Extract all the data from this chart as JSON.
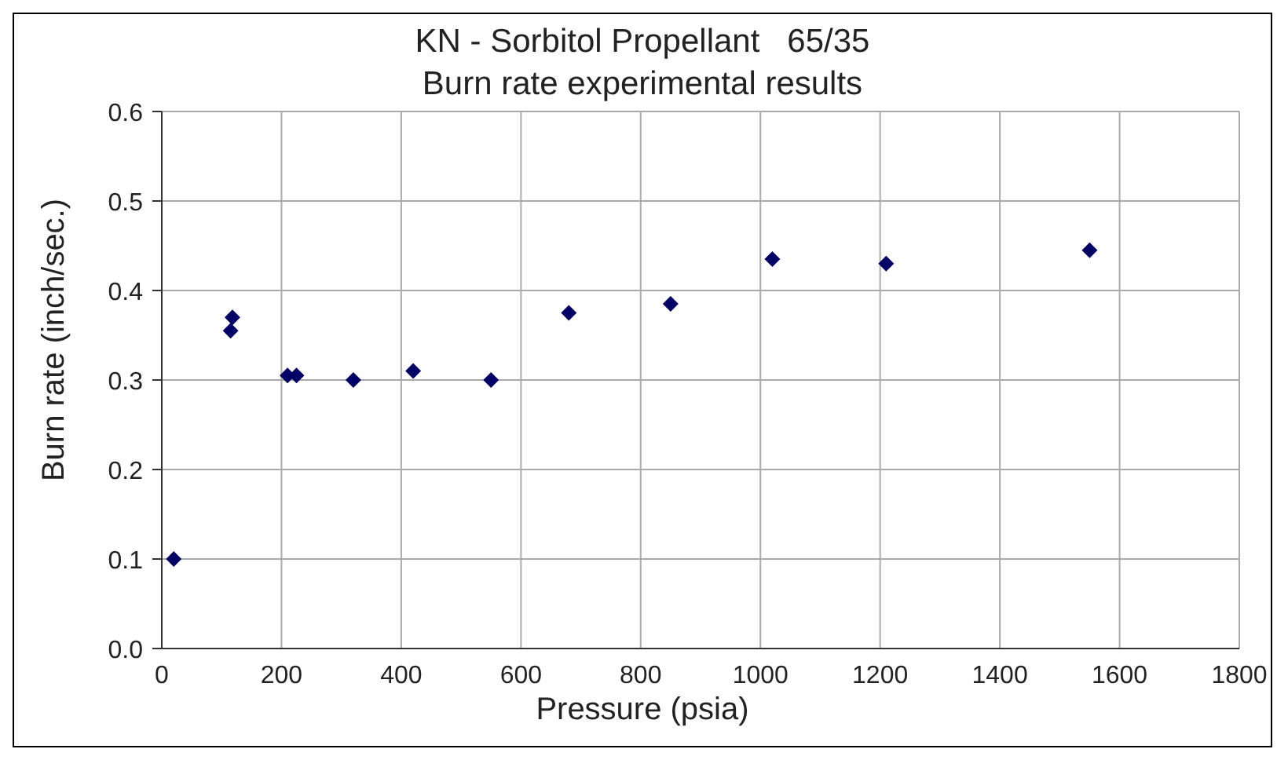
{
  "chart_data": {
    "type": "scatter",
    "title": "KN - Sorbitol Propellant   65/35",
    "subtitle": "Burn rate experimental results",
    "xlabel": "Pressure (psia)",
    "ylabel": "Burn rate (inch/sec.)",
    "x": [
      20,
      115,
      118,
      210,
      225,
      320,
      420,
      550,
      680,
      850,
      1020,
      1210,
      1550
    ],
    "series": [
      {
        "color": "#000066",
        "values": [
          0.1,
          0.355,
          0.37,
          0.305,
          0.305,
          0.3,
          0.31,
          0.3,
          0.375,
          0.385,
          0.435,
          0.43,
          0.445
        ]
      }
    ],
    "xlim": [
      0,
      1800
    ],
    "xticks": [
      0,
      200,
      400,
      600,
      800,
      1000,
      1200,
      1400,
      1600,
      1800
    ],
    "ylim": [
      0,
      0.6
    ],
    "yticks": [
      {
        "value": 0,
        "label": "0.0"
      },
      {
        "value": 0.1,
        "label": "0.1"
      },
      {
        "value": 0.2,
        "label": "0.2"
      },
      {
        "value": 0.3,
        "label": "0.3"
      },
      {
        "value": 0.4,
        "label": "0.4"
      },
      {
        "value": 0.5,
        "label": "0.5"
      },
      {
        "value": 0.6,
        "label": "0.6"
      }
    ],
    "grid": true,
    "marker": "diamond",
    "legend": false
  }
}
